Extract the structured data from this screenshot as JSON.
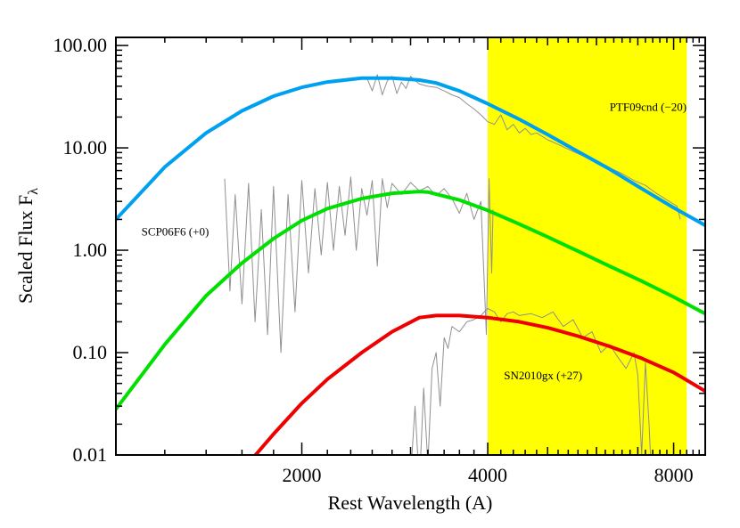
{
  "chart_data": {
    "type": "line",
    "title": "",
    "xlabel": "Rest Wavelength (A)",
    "ylabel": "Scaled Flux F",
    "ylabel_subscript": "λ",
    "xscale": "log",
    "yscale": "log",
    "xlim": [
      1000,
      9000
    ],
    "ylim": [
      0.01,
      120
    ],
    "x_ticks": [
      2000,
      4000,
      8000
    ],
    "x_tick_labels": [
      "2000",
      "4000",
      "8000"
    ],
    "y_ticks": [
      0.01,
      0.1,
      1,
      10,
      100
    ],
    "y_tick_labels": [
      "0.01",
      "0.10",
      "1.00",
      "10.00",
      "100.00"
    ],
    "grid": false,
    "highlight_band": {
      "x": [
        4000,
        8400
      ],
      "color": "#ffff00"
    },
    "annotations": [
      {
        "text": "PTF09cnd (−20)",
        "x": 6300,
        "y": 23
      },
      {
        "text": "SCP06F6 (+0)",
        "x": 1100,
        "y": 1.4
      },
      {
        "text": "SN2010gx (+27)",
        "x": 4250,
        "y": 0.055
      }
    ],
    "series": [
      {
        "color": "#00a0f0",
        "style": "model",
        "x": [
          1000,
          1200,
          1400,
          1600,
          1800,
          2000,
          2200,
          2500,
          2800,
          3100,
          3300,
          3600,
          4000,
          4500,
          5000,
          5600,
          6300,
          7100,
          8000,
          9000
        ],
        "y": [
          2.0,
          6.5,
          14,
          23,
          32,
          39,
          44,
          48,
          48,
          46,
          43,
          36,
          27,
          19,
          13.5,
          9.2,
          6.2,
          4.0,
          2.6,
          1.75
        ]
      },
      {
        "color": "#00e000",
        "style": "model",
        "x": [
          1000,
          1200,
          1400,
          1600,
          1800,
          2000,
          2200,
          2500,
          2800,
          3100,
          3200,
          3600,
          4000,
          4500,
          5000,
          5600,
          6300,
          7100,
          8000,
          9000
        ],
        "y": [
          0.028,
          0.12,
          0.36,
          0.75,
          1.3,
          1.95,
          2.55,
          3.2,
          3.6,
          3.75,
          3.7,
          3.1,
          2.45,
          1.8,
          1.35,
          0.98,
          0.7,
          0.5,
          0.35,
          0.24
        ]
      },
      {
        "color": "#ee0000",
        "style": "model",
        "x": [
          1600,
          1800,
          2000,
          2200,
          2500,
          2800,
          3100,
          3300,
          3600,
          4000,
          4500,
          5000,
          5600,
          6300,
          7100,
          8000,
          9000
        ],
        "y": [
          0.007,
          0.016,
          0.032,
          0.055,
          0.1,
          0.16,
          0.22,
          0.23,
          0.23,
          0.22,
          0.2,
          0.175,
          0.145,
          0.115,
          0.088,
          0.064,
          0.042
        ]
      },
      {
        "color": "#909090",
        "style": "spectrum",
        "x": [
          2550,
          2600,
          2650,
          2700,
          2750,
          2800,
          2850,
          2900,
          2950,
          3000,
          3100,
          3200,
          3300,
          3400,
          3500,
          3600,
          3700,
          3800,
          3900,
          4000,
          4100,
          4200,
          4300,
          4400,
          4500,
          4600,
          4700,
          4800,
          5000,
          5200,
          5400,
          5600,
          5800,
          6000,
          6300,
          6600,
          6900,
          7200,
          7500,
          7800,
          8100,
          8200
        ],
        "y": [
          48,
          36,
          52,
          33,
          45,
          50,
          34,
          44,
          38,
          50,
          42,
          40,
          39,
          36,
          33,
          31,
          27,
          24,
          21,
          18,
          17,
          21,
          15,
          17,
          14,
          15.5,
          13.5,
          14,
          12,
          10.8,
          9.7,
          8.8,
          8.0,
          7.2,
          6.4,
          5.6,
          4.8,
          4.3,
          3.6,
          3.1,
          2.7,
          2.0
        ]
      },
      {
        "color": "#909090",
        "style": "spectrum",
        "x": [
          1500,
          1530,
          1560,
          1600,
          1640,
          1680,
          1720,
          1760,
          1800,
          1850,
          1900,
          1950,
          2000,
          2050,
          2100,
          2150,
          2200,
          2250,
          2300,
          2350,
          2400,
          2450,
          2500,
          2550,
          2600,
          2650,
          2700,
          2750,
          2800,
          2900,
          3000,
          3100,
          3200,
          3300,
          3400,
          3500,
          3600,
          3700,
          3800,
          3900,
          3980,
          4020,
          4060,
          4080
        ],
        "y": [
          5.0,
          0.4,
          3.5,
          0.3,
          4.5,
          0.2,
          2.5,
          0.15,
          4.2,
          0.1,
          3.5,
          0.25,
          4.8,
          0.6,
          4.0,
          0.9,
          4.6,
          1.0,
          4.2,
          1.4,
          5.2,
          1.0,
          4.0,
          2.2,
          4.8,
          0.7,
          5.0,
          2.6,
          4.5,
          3.5,
          4.6,
          3.8,
          4.2,
          3.4,
          4.0,
          3.2,
          2.3,
          3.6,
          2.0,
          3.0,
          0.15,
          5.0,
          0.6,
          2.5
        ]
      },
      {
        "color": "#909090",
        "style": "spectrum",
        "x": [
          3000,
          3050,
          3100,
          3150,
          3200,
          3250,
          3300,
          3350,
          3400,
          3450,
          3500,
          3600,
          3700,
          3800,
          3900,
          4000,
          4100,
          4200,
          4300,
          4400,
          4500,
          4700,
          4900,
          5100,
          5300,
          5500,
          5700,
          5900,
          6100,
          6300,
          6500,
          6700,
          6900,
          7000,
          7100,
          7200,
          7300,
          7350
        ],
        "y": [
          0.006,
          0.03,
          0.005,
          0.045,
          0.008,
          0.07,
          0.1,
          0.03,
          0.14,
          0.11,
          0.18,
          0.16,
          0.2,
          0.21,
          0.23,
          0.27,
          0.25,
          0.2,
          0.24,
          0.25,
          0.23,
          0.24,
          0.22,
          0.25,
          0.18,
          0.21,
          0.14,
          0.16,
          0.1,
          0.12,
          0.09,
          0.07,
          0.1,
          0.06,
          0.01,
          0.08,
          0.02,
          0.008
        ]
      }
    ]
  }
}
